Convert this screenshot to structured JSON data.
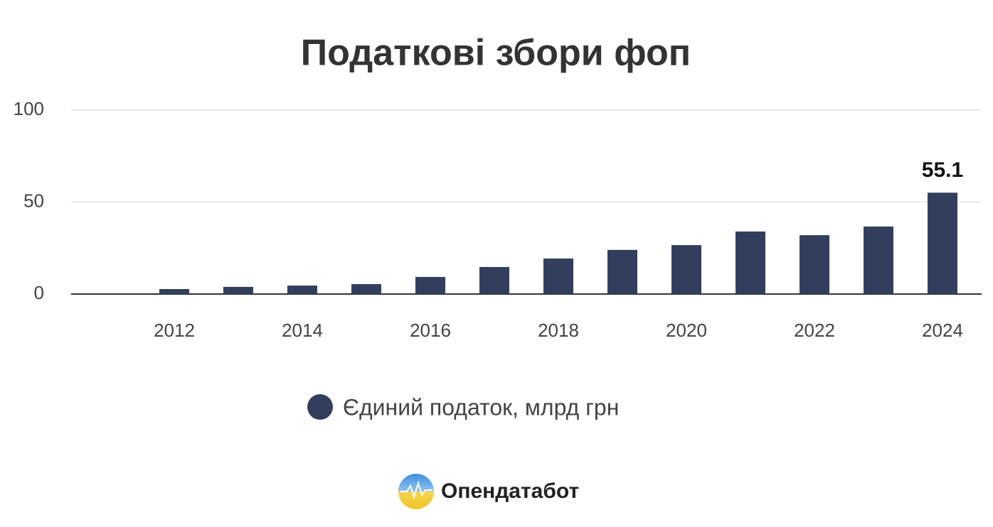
{
  "chart_data": {
    "type": "bar",
    "title": "Податкові збори фоп",
    "categories": [
      null,
      "2012",
      null,
      "2014",
      null,
      "2016",
      null,
      "2018",
      null,
      "2020",
      null,
      "2022",
      null,
      "2024"
    ],
    "series": [
      {
        "name": "Єдиний податок, млрд грн",
        "color": "#323f5c",
        "values": [
          null,
          2.7,
          3.9,
          4.6,
          5.4,
          9.3,
          14.7,
          19.3,
          24,
          26.6,
          34,
          32,
          36.7,
          55.1
        ],
        "value_labels": [
          null,
          null,
          null,
          null,
          null,
          null,
          null,
          null,
          null,
          null,
          null,
          null,
          null,
          "55.1"
        ]
      }
    ],
    "ylim": [
      0,
      100
    ],
    "yticks": [
      0,
      50,
      100
    ],
    "grid": true,
    "legend": "bottom",
    "source": "Опендатабот"
  }
}
